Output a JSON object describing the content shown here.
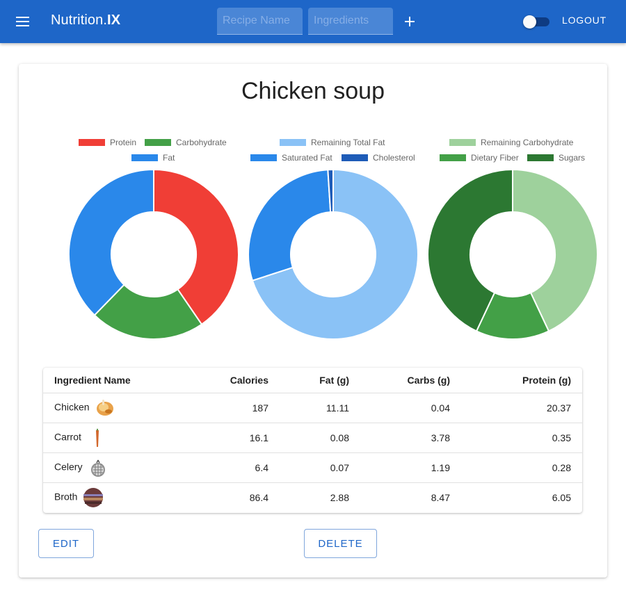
{
  "appbar": {
    "brand_prefix": "Nutrition.",
    "brand_suffix": "IX",
    "recipe_placeholder": "Recipe Name",
    "ingredients_placeholder": "Ingredients",
    "logout_label": "LOGOUT",
    "toggle_on": false,
    "color": "#1e66c8"
  },
  "recipe": {
    "title": "Chicken soup"
  },
  "chart_data": [
    {
      "type": "pie",
      "variant": "doughnut",
      "title": "",
      "labels": [
        "Protein",
        "Carbohydrate",
        "Fat"
      ],
      "values": [
        20.37,
        11.0,
        19.0
      ],
      "colors": [
        "#f03e36",
        "#43a047",
        "#2a88ea"
      ],
      "legend": "top"
    },
    {
      "type": "pie",
      "variant": "doughnut",
      "title": "",
      "labels": [
        "Remaining Total Fat",
        "Saturated Fat",
        "Cholesterol"
      ],
      "values": [
        70.0,
        29.0,
        1.0
      ],
      "colors": [
        "#8ac2f6",
        "#2a88ea",
        "#1e5cb8"
      ],
      "legend": "top"
    },
    {
      "type": "pie",
      "variant": "doughnut",
      "title": "",
      "labels": [
        "Remaining Carbohydrate",
        "Dietary Fiber",
        "Sugars"
      ],
      "values": [
        43.0,
        14.0,
        43.0
      ],
      "colors": [
        "#9ed19c",
        "#43a047",
        "#2c7832"
      ],
      "legend": "top"
    }
  ],
  "table": {
    "headers": [
      "Ingredient Name",
      "Calories",
      "Fat (g)",
      "Carbs (g)",
      "Protein (g)"
    ],
    "rows": [
      {
        "name": "Chicken",
        "icon": "chicken-icon",
        "calories": "187",
        "fat": "11.11",
        "carbs": "0.04",
        "protein": "20.37"
      },
      {
        "name": "Carrot",
        "icon": "carrot-icon",
        "calories": "16.1",
        "fat": "0.08",
        "carbs": "3.78",
        "protein": "0.35"
      },
      {
        "name": "Celery",
        "icon": "celery-icon",
        "calories": "6.4",
        "fat": "0.07",
        "carbs": "1.19",
        "protein": "0.28"
      },
      {
        "name": "Broth",
        "icon": "broth-icon",
        "calories": "86.4",
        "fat": "2.88",
        "carbs": "8.47",
        "protein": "6.05"
      }
    ]
  },
  "actions": {
    "edit_label": "EDIT",
    "delete_label": "DELETE"
  }
}
